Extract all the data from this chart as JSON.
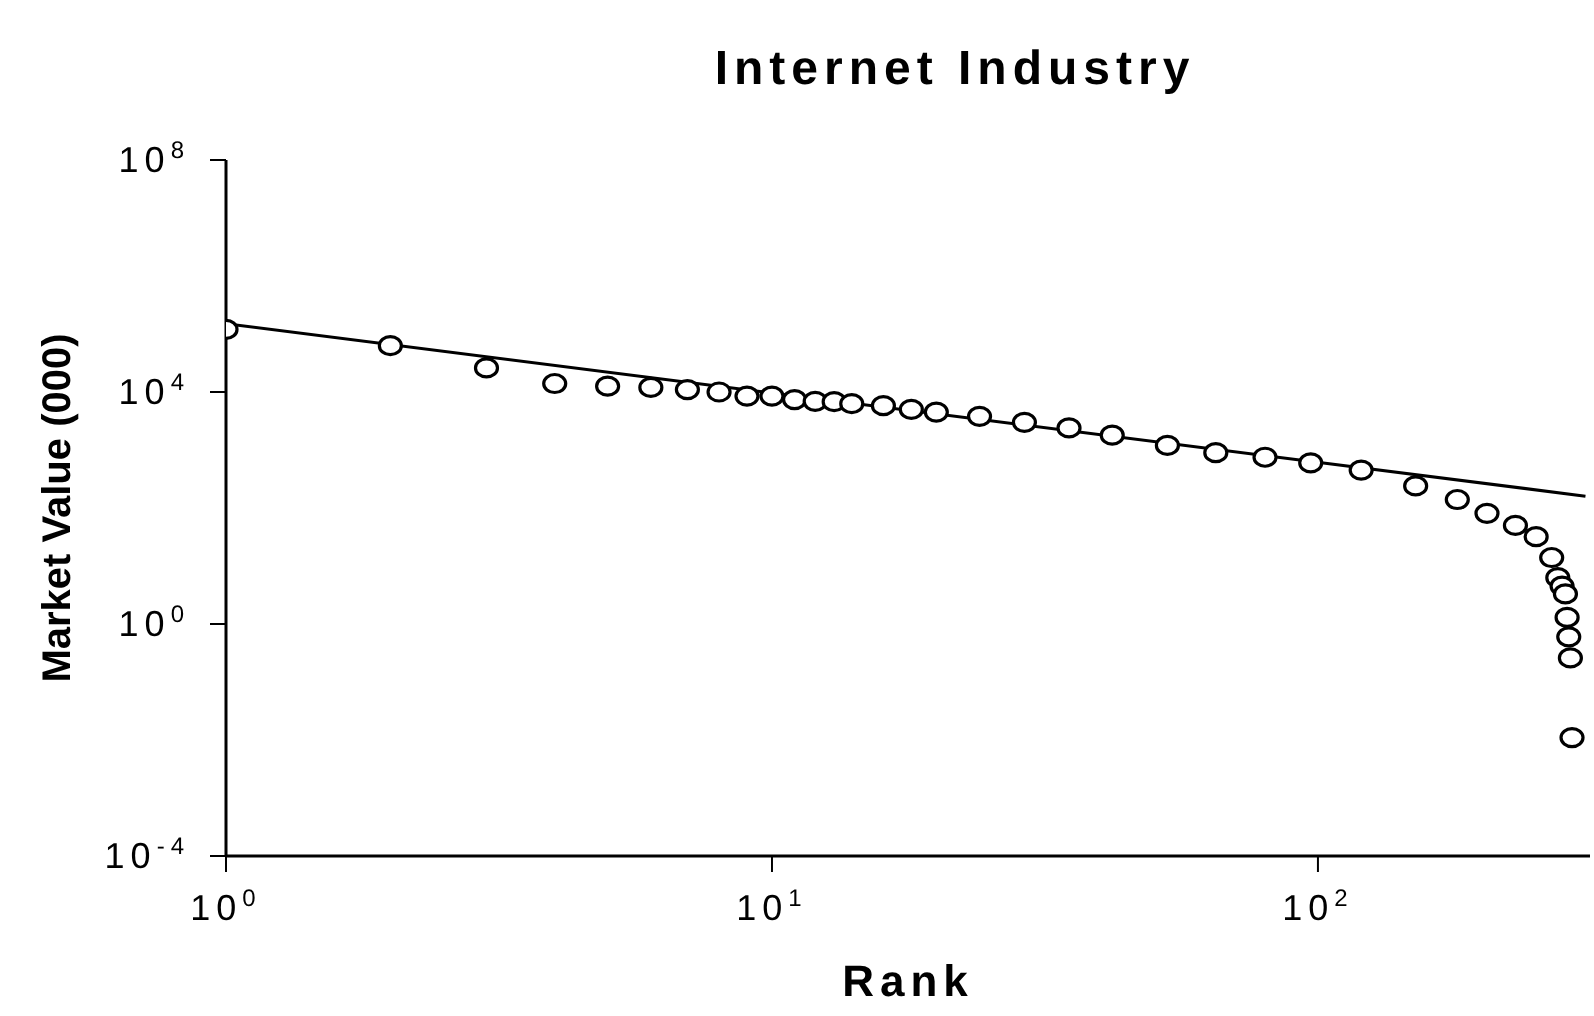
{
  "chart_data": {
    "type": "scatter",
    "title": "Internet Industry",
    "xlabel": "Rank",
    "ylabel": "Market Value (000)",
    "log": "xy",
    "xlim": [
      1,
      315
    ],
    "ylim": [
      0.0001,
      100000000
    ],
    "xticks": [
      {
        "value": 1,
        "label": "10$^{0}$"
      },
      {
        "value": 10,
        "label": "10$^{1}$"
      },
      {
        "value": 100,
        "label": "10$^{2}$"
      }
    ],
    "yticks": [
      {
        "value": 0.0001,
        "label": "10$^{-4}$"
      },
      {
        "value": 1,
        "label": "10$^{0}$"
      },
      {
        "value": 10000,
        "label": "10$^{4}$"
      },
      {
        "value": 100000000,
        "label": "10$^{8}$"
      }
    ],
    "series": [
      {
        "marker": "circle",
        "color": "#000000",
        "x": [
          1,
          2,
          3,
          4,
          5,
          6,
          7,
          8,
          9,
          10,
          11,
          12,
          13,
          14,
          16,
          18,
          20,
          24,
          29,
          35,
          42,
          53,
          65,
          80,
          97,
          120,
          151,
          180,
          204,
          230,
          251,
          268,
          275,
          280,
          284,
          286,
          288,
          290,
          292
        ],
        "values": [
          120000,
          63000,
          26000,
          14000,
          12600,
          12000,
          11000,
          10000,
          8500,
          8500,
          7400,
          6900,
          6800,
          6300,
          5800,
          5000,
          4500,
          3800,
          3000,
          2400,
          1800,
          1200,
          900,
          750,
          600,
          450,
          240,
          140,
          81,
          50,
          32,
          14,
          6.3,
          4.5,
          3.3,
          1.3,
          0.6,
          0.26,
          0.011
        ]
      },
      {
        "type": "line",
        "color": "#000000",
        "line_style": "solid",
        "x": [
          1,
          309
        ],
        "values": [
          150000,
          160
        ]
      }
    ]
  }
}
